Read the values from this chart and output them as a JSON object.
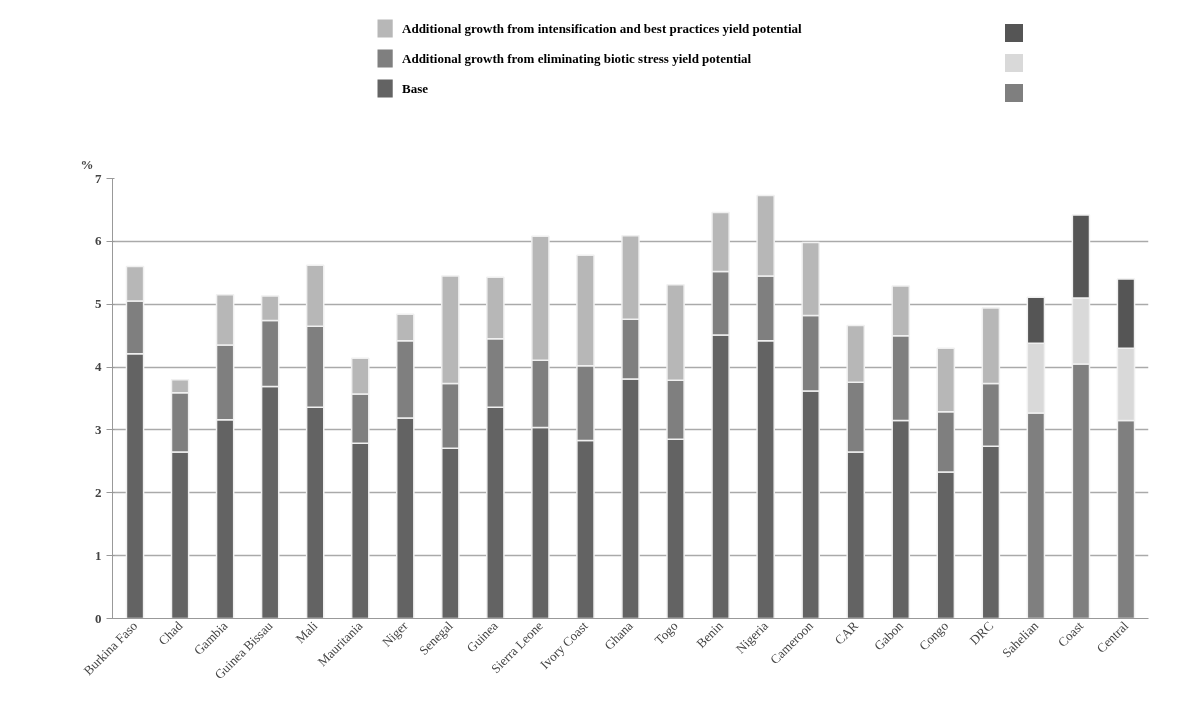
{
  "chart_data": {
    "type": "bar",
    "stacked": true,
    "ylabel": "%",
    "ylim": [
      0,
      7
    ],
    "yticks": [
      0,
      1,
      2,
      3,
      4,
      5,
      6,
      7
    ],
    "grid": "y",
    "legend": "top",
    "categories": [
      "Burkina Faso",
      "Chad",
      "Gambia",
      "Guinea Bissau",
      "Mali",
      "Mauritania",
      "Niger",
      "Senegal",
      "Guinea",
      "Sierra Leone",
      "Ivory Coast",
      "Ghana",
      "Togo",
      "Benin",
      "Nigeria",
      "Cameroon",
      "CAR",
      "Gabon",
      "Congo",
      "DRC",
      "Sahelian",
      "Coast",
      "Central"
    ],
    "series": [
      {
        "name": "Base",
        "color": "#636363",
        "colors": [
          "#636363",
          "#636363",
          "#636363",
          "#636363",
          "#636363",
          "#636363",
          "#636363",
          "#636363",
          "#636363",
          "#636363",
          "#636363",
          "#636363",
          "#636363",
          "#636363",
          "#636363",
          "#636363",
          "#636363",
          "#636363",
          "#636363",
          "#636363",
          "#7f7f7f",
          "#7f7f7f",
          "#7f7f7f"
        ],
        "values": [
          4.21,
          2.65,
          3.16,
          3.69,
          3.36,
          2.79,
          3.19,
          2.71,
          3.36,
          3.04,
          2.83,
          3.81,
          2.85,
          4.51,
          4.42,
          3.62,
          2.65,
          3.15,
          2.33,
          2.74,
          3.27,
          4.05,
          3.15
        ]
      },
      {
        "name": "Additional growth from  eliminating biotic stress yield potential",
        "color": "#7f7f7f",
        "colors": [
          "#7f7f7f",
          "#7f7f7f",
          "#7f7f7f",
          "#7f7f7f",
          "#7f7f7f",
          "#7f7f7f",
          "#7f7f7f",
          "#7f7f7f",
          "#7f7f7f",
          "#7f7f7f",
          "#7f7f7f",
          "#7f7f7f",
          "#7f7f7f",
          "#7f7f7f",
          "#7f7f7f",
          "#7f7f7f",
          "#7f7f7f",
          "#7f7f7f",
          "#7f7f7f",
          "#7f7f7f",
          "#d9d9d9",
          "#d9d9d9",
          "#d9d9d9"
        ],
        "values": [
          0.84,
          0.94,
          1.19,
          1.05,
          1.29,
          0.78,
          1.23,
          1.03,
          1.09,
          1.07,
          1.19,
          0.95,
          0.94,
          1.01,
          1.03,
          1.2,
          1.11,
          1.35,
          0.96,
          1.0,
          1.11,
          1.05,
          1.15
        ]
      },
      {
        "name": "Additional growth from  intensification and best practices yield potential",
        "color": "#b7b7b7",
        "colors": [
          "#b7b7b7",
          "#b7b7b7",
          "#b7b7b7",
          "#b7b7b7",
          "#b7b7b7",
          "#b7b7b7",
          "#b7b7b7",
          "#b7b7b7",
          "#b7b7b7",
          "#b7b7b7",
          "#b7b7b7",
          "#b7b7b7",
          "#b7b7b7",
          "#b7b7b7",
          "#b7b7b7",
          "#b7b7b7",
          "#b7b7b7",
          "#b7b7b7",
          "#b7b7b7",
          "#b7b7b7",
          "#555555",
          "#555555",
          "#555555"
        ],
        "values": [
          0.55,
          0.21,
          0.8,
          0.39,
          0.97,
          0.57,
          0.42,
          1.71,
          0.98,
          1.97,
          1.76,
          1.33,
          1.52,
          0.94,
          1.28,
          1.16,
          0.9,
          0.79,
          1.01,
          1.2,
          0.73,
          1.32,
          1.1
        ]
      }
    ]
  }
}
